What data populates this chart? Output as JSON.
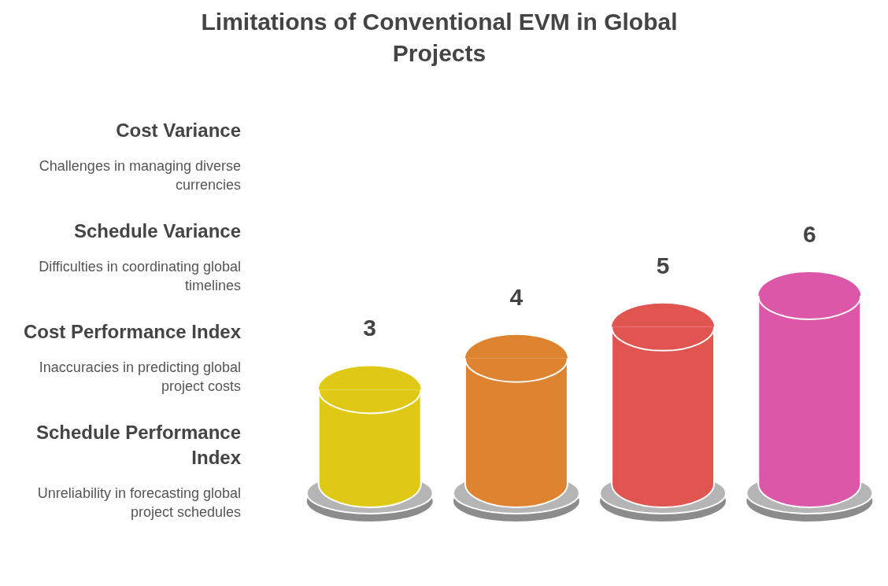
{
  "chart_data": {
    "type": "bar",
    "title": "Limitations of Conventional EVM in Global Projects",
    "categories": [
      null,
      null,
      null,
      null
    ],
    "values": [
      3,
      4,
      5,
      6
    ],
    "colors": [
      "#dfc916",
      "#de8430",
      "#e05550",
      "#dc57a8"
    ],
    "data_labels": true,
    "annotations": [
      "Cost Variance",
      "Challenges in managing diverse currencies",
      "Schedule Variance",
      "Difficulties in coordinating global timelines",
      "Cost Performance Index",
      "Inaccuracies in predicting global project costs",
      "Schedule Performance Index",
      "Unreliability in forecasting global project schedules"
    ]
  }
}
